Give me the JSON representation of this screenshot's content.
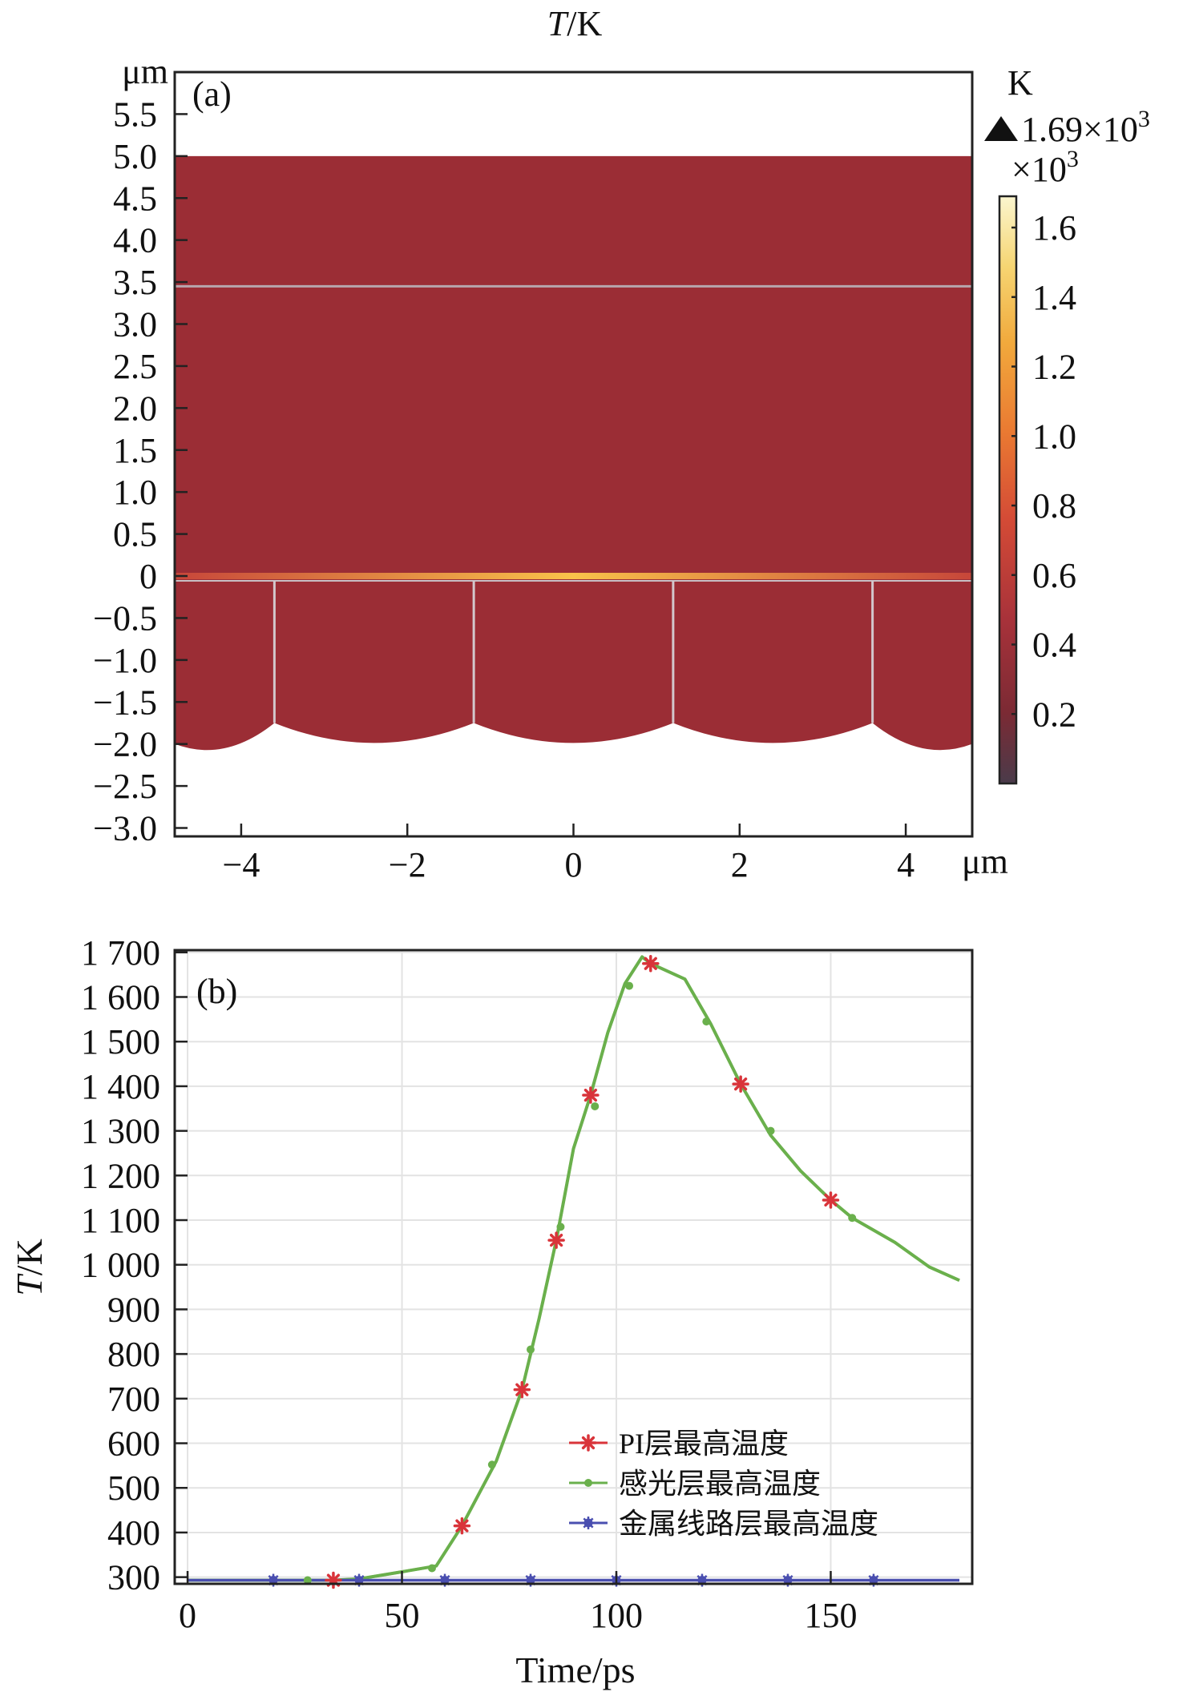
{
  "figure": {
    "heading": "T/K",
    "heading_italic": "T",
    "heading_rest": "/K"
  },
  "chart_data": [
    {
      "type": "heatmap",
      "panel_label": "(a)",
      "x_unit": "μm",
      "y_unit": "μm",
      "xlim": [
        -4.8,
        4.8
      ],
      "ylim": [
        -3.1,
        6.0
      ],
      "x_ticks": [
        -4,
        -2,
        0,
        2,
        4
      ],
      "x_tick_labels": [
        "−4",
        "−2",
        "0",
        "2",
        "4"
      ],
      "y_ticks": [
        5.5,
        5.0,
        4.5,
        4.0,
        3.5,
        3.0,
        2.5,
        2.0,
        1.5,
        1.0,
        0.5,
        0,
        -0.5,
        -1.0,
        -1.5,
        -2.0,
        -2.5,
        -3.0
      ],
      "y_tick_labels": [
        "5.5",
        "5.0",
        "4.5",
        "4.0",
        "3.5",
        "3.0",
        "2.5",
        "2.0",
        "1.5",
        "1.0",
        "0.5",
        "0",
        "−0.5",
        "−1.0",
        "−1.5",
        "−2.0",
        "−2.5",
        "−3.0"
      ],
      "domain_top": 5.0,
      "layer_interface_y": 3.45,
      "hot_interface_y": 0,
      "bottom_boundary_y": -2.0,
      "bump_peak_y": -1.75,
      "vertical_divider_x": [
        -3.6,
        -1.2,
        1.2,
        3.6
      ],
      "colorbar": {
        "unit": "K",
        "max_label": "1.69×10",
        "max_exponent": "3",
        "scale_label": "×10",
        "scale_exponent": "3",
        "range": [
          0.0,
          1.69
        ],
        "ticks": [
          1.6,
          1.4,
          1.2,
          1.0,
          0.8,
          0.6,
          0.4,
          0.2
        ],
        "tick_labels": [
          "1.6",
          "1.4",
          "1.2",
          "1.0",
          "0.8",
          "0.6",
          "0.4",
          "0.2"
        ]
      },
      "colors": {
        "body": "#9b2d35",
        "hot": "#f5b13a",
        "interface_line": "#b7a6ad"
      }
    },
    {
      "type": "line",
      "panel_label": "(b)",
      "xlabel": "Time/ps",
      "ylabel": "T/K",
      "ylabel_italic": "T",
      "ylabel_rest": "/K",
      "xlim": [
        -3,
        183
      ],
      "ylim": [
        285,
        1705
      ],
      "x_ticks": [
        0,
        50,
        100,
        150
      ],
      "x_tick_labels": [
        "0",
        "50",
        "100",
        "150"
      ],
      "y_ticks": [
        1700,
        1600,
        1500,
        1400,
        1300,
        1200,
        1100,
        1000,
        900,
        800,
        700,
        600,
        500,
        400,
        300
      ],
      "y_tick_labels": [
        "1 700",
        "1 600",
        "1 500",
        "1 400",
        "1 300",
        "1 200",
        "1 100",
        "1 000",
        "900",
        "800",
        "700",
        "600",
        "500",
        "400",
        "300"
      ],
      "grid": true,
      "legend_position": "lower-right",
      "series": [
        {
          "name": "PI层最高温度",
          "color": "#d9343a",
          "marker": "asterisk",
          "x": [
            0,
            20,
            34,
            40,
            50,
            58,
            64,
            72,
            78,
            82,
            86,
            90,
            94,
            98,
            102,
            106,
            108,
            116,
            122,
            129,
            136,
            143,
            150,
            155,
            165,
            173,
            180
          ],
          "y": [
            293,
            293,
            293,
            296,
            312,
            325,
            415,
            560,
            720,
            880,
            1055,
            1260,
            1380,
            1520,
            1630,
            1690,
            1675,
            1640,
            1540,
            1405,
            1290,
            1210,
            1145,
            1105,
            1050,
            995,
            965
          ],
          "marker_x": [
            34,
            64,
            78,
            86,
            94,
            108,
            129,
            150
          ],
          "marker_y": [
            293,
            415,
            720,
            1055,
            1380,
            1675,
            1405,
            1145
          ]
        },
        {
          "name": "感光层最高温度",
          "color": "#6ab04c",
          "marker": "dot",
          "x": [
            0,
            20,
            34,
            40,
            50,
            58,
            64,
            72,
            78,
            82,
            86,
            90,
            94,
            98,
            102,
            106,
            108,
            116,
            122,
            129,
            136,
            143,
            150,
            155,
            165,
            173,
            180
          ],
          "y": [
            293,
            293,
            293,
            296,
            312,
            325,
            415,
            560,
            720,
            880,
            1055,
            1260,
            1380,
            1520,
            1630,
            1690,
            1675,
            1640,
            1540,
            1405,
            1290,
            1210,
            1145,
            1105,
            1050,
            995,
            965
          ],
          "marker_x": [
            28,
            57,
            71,
            80,
            87,
            95,
            103,
            121,
            136,
            155
          ],
          "marker_y": [
            293,
            320,
            552,
            810,
            1085,
            1355,
            1625,
            1545,
            1300,
            1105
          ]
        },
        {
          "name": "金属线路层最高温度",
          "color": "#4a4fb0",
          "marker": "star",
          "x": [
            0,
            180
          ],
          "y": [
            293,
            293
          ],
          "marker_x": [
            20,
            40,
            60,
            80,
            100,
            120,
            140,
            160
          ],
          "marker_y": [
            293,
            293,
            293,
            293,
            293,
            293,
            293,
            293
          ]
        }
      ]
    }
  ]
}
